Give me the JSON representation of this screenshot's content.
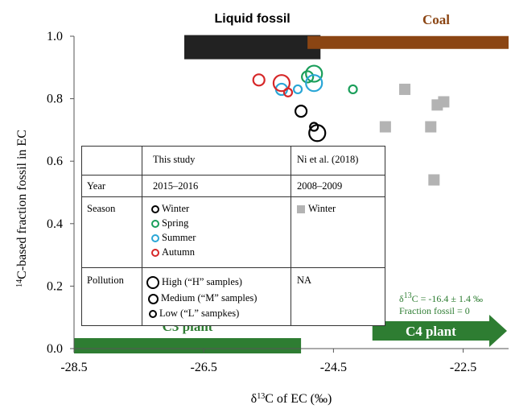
{
  "chart_data": {
    "type": "scatter",
    "xlabel": "δ13C of EC (‰)",
    "ylabel": "14C-based fraction fossil in EC",
    "xlim": [
      -28.5,
      -21.8
    ],
    "ylim": [
      0.0,
      1.0
    ],
    "xticks": [
      -28.5,
      -26.5,
      -24.5,
      -22.5
    ],
    "xtick_labels": [
      "-28.5",
      "-26.5",
      "-24.5",
      "-22.5"
    ],
    "yticks": [
      0.0,
      0.2,
      0.4,
      0.6,
      0.8,
      1.0
    ],
    "ytick_labels": [
      "0.0",
      "0.2",
      "0.4",
      "0.6",
      "0.8",
      "1.0"
    ],
    "source_bars": [
      {
        "name": "Liquid fossil",
        "color": "#222222",
        "x_from": -26.8,
        "x_to": -24.7,
        "y": 0.965
      },
      {
        "name": "Coal",
        "color": "#8b4513",
        "x_from": -24.9,
        "x_to": -21.8,
        "y": 0.98
      },
      {
        "name": "C3 plant",
        "color": "#2e7d32",
        "x_from": -28.5,
        "x_to": -25.0,
        "y": 0.0
      },
      {
        "name": "C4 plant",
        "color": "#2e7d32",
        "x_from": -23.9,
        "x_to": -21.8,
        "y": 0.0
      }
    ],
    "c4_annotation": [
      "δ13C = -16.4 ± 1.4 ‰",
      "Fraction fossil = 0"
    ],
    "series": [
      {
        "name": "Winter",
        "color": "#000000",
        "points": [
          [
            -25.0,
            0.76,
            "M"
          ],
          [
            -24.8,
            0.71,
            "L"
          ],
          [
            -24.75,
            0.69,
            "H"
          ]
        ]
      },
      {
        "name": "Spring",
        "color": "#1a9e5a",
        "points": [
          [
            -24.8,
            0.88,
            "H"
          ],
          [
            -24.9,
            0.87,
            "M"
          ],
          [
            -24.2,
            0.83,
            "L"
          ]
        ]
      },
      {
        "name": "Summer",
        "color": "#2aa6d6",
        "points": [
          [
            -24.8,
            0.85,
            "H"
          ],
          [
            -25.3,
            0.83,
            "M"
          ],
          [
            -25.05,
            0.83,
            "L"
          ]
        ]
      },
      {
        "name": "Autumn",
        "color": "#d62728",
        "points": [
          [
            -25.65,
            0.86,
            "M"
          ],
          [
            -25.3,
            0.85,
            "H"
          ],
          [
            -25.2,
            0.82,
            "L"
          ]
        ]
      },
      {
        "name": "Winter (Ni et al. 2018)",
        "color": "#b3b3b3",
        "marker": "square",
        "points": [
          [
            -23.4,
            0.83
          ],
          [
            -23.7,
            0.71
          ],
          [
            -22.9,
            0.78
          ],
          [
            -22.8,
            0.79
          ],
          [
            -23.0,
            0.71
          ],
          [
            -22.95,
            0.54
          ]
        ]
      }
    ]
  },
  "table": {
    "col_this_study": "This study",
    "col_ni": "Ni et al. (2018)",
    "row_year": "Year",
    "year_this": "2015–2016",
    "year_ni": "2008–2009",
    "row_season": "Season",
    "season_winter": "Winter",
    "season_spring": "Spring",
    "season_summer": "Summer",
    "season_autumn": "Autumn",
    "season_ni": "Winter",
    "row_pollution": "Pollution",
    "poll_high": "High (“H” samples)",
    "poll_medium": "Medium (“M” samples)",
    "poll_low": "Low (“L” sampkes)",
    "poll_ni": "NA"
  }
}
